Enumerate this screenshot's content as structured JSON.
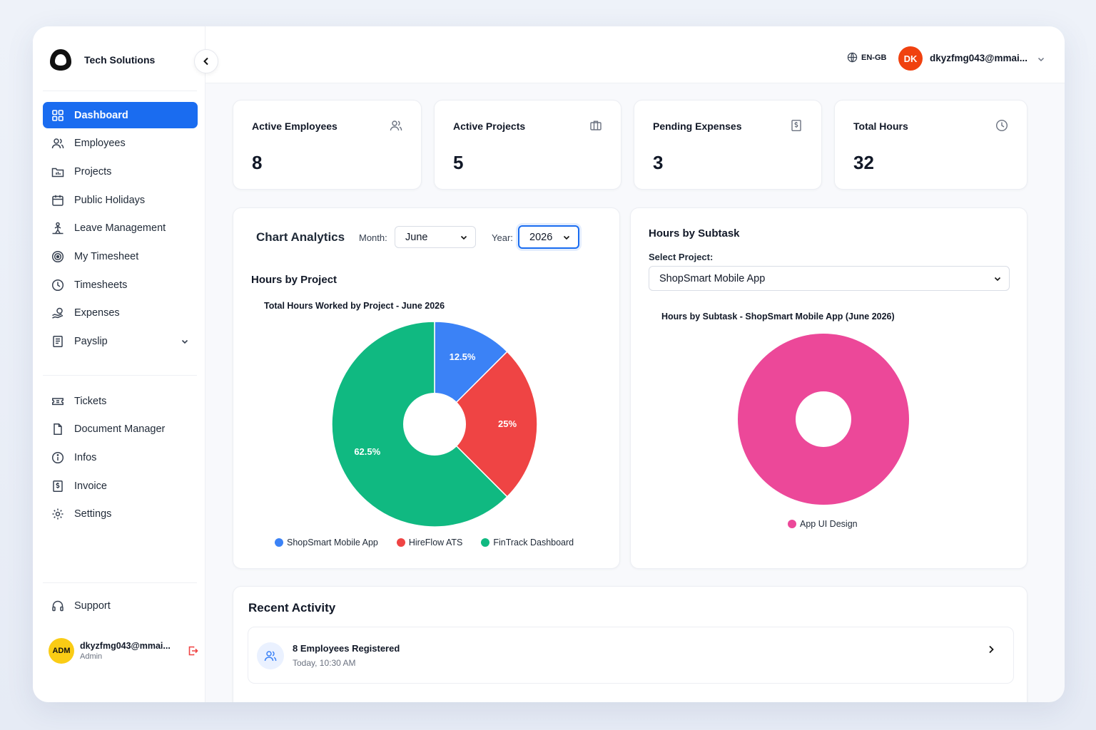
{
  "brand": {
    "name": "Tech Solutions"
  },
  "sidebar": {
    "items": [
      {
        "label": "Dashboard",
        "icon": "grid-icon",
        "active": true
      },
      {
        "label": "Employees",
        "icon": "users-icon"
      },
      {
        "label": "Projects",
        "icon": "folder-icon"
      },
      {
        "label": "Public Holidays",
        "icon": "calendar-icon"
      },
      {
        "label": "Leave Management",
        "icon": "leave-icon"
      },
      {
        "label": "My Timesheet",
        "icon": "target-icon"
      },
      {
        "label": "Timesheets",
        "icon": "clock-icon"
      },
      {
        "label": "Expenses",
        "icon": "expenses-icon"
      },
      {
        "label": "Payslip",
        "icon": "document-icon",
        "expandable": true
      }
    ],
    "items2": [
      {
        "label": "Tickets",
        "icon": "ticket-icon"
      },
      {
        "label": "Document Manager",
        "icon": "file-icon"
      },
      {
        "label": "Infos",
        "icon": "info-icon"
      },
      {
        "label": "Invoice",
        "icon": "invoice-icon"
      },
      {
        "label": "Settings",
        "icon": "gear-icon"
      }
    ],
    "support": "Support",
    "user": {
      "initials": "ADM",
      "email": "dkyzfmg043@mmai...",
      "role": "Admin"
    }
  },
  "header": {
    "lang": "EN-GB",
    "user_initials": "DK",
    "user_email": "dkyzfmg043@mmai..."
  },
  "stats": [
    {
      "label": "Active Employees",
      "value": "8",
      "icon": "users-icon"
    },
    {
      "label": "Active Projects",
      "value": "5",
      "icon": "briefcase-icon"
    },
    {
      "label": "Pending Expenses",
      "value": "3",
      "icon": "dollar-doc-icon"
    },
    {
      "label": "Total Hours",
      "value": "32",
      "icon": "clock-icon"
    }
  ],
  "analytics": {
    "title": "Chart Analytics",
    "month_label": "Month:",
    "month_value": "June",
    "year_label": "Year:",
    "year_value": "2026",
    "section_title": "Hours by Project",
    "chart_title": "Total Hours Worked by Project - June 2026"
  },
  "subtask": {
    "title": "Hours by Subtask",
    "select_label": "Select Project:",
    "select_value": "ShopSmart Mobile App",
    "chart_title": "Hours by Subtask - ShopSmart Mobile App (June 2026)"
  },
  "chart_data": [
    {
      "type": "pie",
      "title": "Total Hours Worked by Project - June 2026",
      "categories": [
        "ShopSmart Mobile App",
        "HireFlow ATS",
        "FinTrack Dashboard"
      ],
      "values": [
        12.5,
        25,
        62.5
      ],
      "labels": [
        "12.5%",
        "25%",
        "62.5%"
      ],
      "colors": [
        "#3b82f6",
        "#ef4444",
        "#10b981"
      ],
      "legend": "bottom"
    },
    {
      "type": "pie",
      "title": "Hours by Subtask - ShopSmart Mobile App (June 2026)",
      "categories": [
        "App UI Design"
      ],
      "values": [
        100
      ],
      "colors": [
        "#ec4899"
      ],
      "legend": "bottom"
    }
  ],
  "activity": {
    "title": "Recent Activity",
    "items": [
      {
        "title": "8 Employees Registered",
        "time": "Today, 10:30 AM"
      }
    ]
  }
}
